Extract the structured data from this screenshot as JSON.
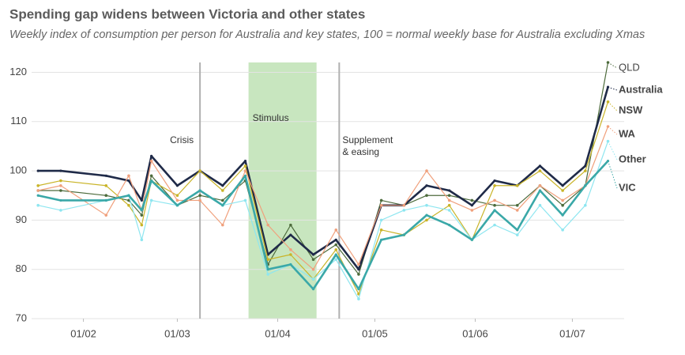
{
  "chart_data": {
    "type": "line",
    "title": "Spending gap widens between Victoria and other states",
    "subtitle": "Weekly index of consumption per person for Australia and key states, 100 = normal weekly base for Australia excluding Xmas",
    "x": [
      "18/01",
      "25/01",
      "08/02",
      "15/02",
      "19/02",
      "22/02",
      "01/03",
      "08/03",
      "15/03",
      "22/03",
      "29/03",
      "05/04",
      "12/04",
      "19/04",
      "26/04",
      "03/05",
      "10/05",
      "17/05",
      "24/05",
      "31/05",
      "07/06",
      "14/06",
      "21/06",
      "28/06",
      "05/07",
      "12/07"
    ],
    "xlim": [
      "16/01",
      "17/07"
    ],
    "xticks": [
      "01/02",
      "01/03",
      "01/04",
      "01/05",
      "01/06",
      "01/07"
    ],
    "ylim": [
      70,
      122
    ],
    "yticks": [
      70,
      80,
      90,
      100,
      110,
      120
    ],
    "grid": true,
    "series": [
      {
        "name": "QLD",
        "color": "#4d6b3c",
        "values": [
          96,
          96,
          95,
          94,
          91,
          99,
          93,
          95,
          94,
          98,
          81,
          89,
          82,
          85,
          79,
          94,
          93,
          95,
          95,
          94,
          93,
          93,
          97,
          93,
          97,
          122
        ]
      },
      {
        "name": "Australia",
        "color": "#1f2a48",
        "values": [
          100,
          100,
          99,
          98,
          94,
          103,
          97,
          100,
          97,
          102,
          83,
          87,
          83,
          86,
          80,
          93,
          93,
          97,
          96,
          93,
          98,
          97,
          101,
          97,
          101,
          117
        ]
      },
      {
        "name": "NSW",
        "color": "#c9b428",
        "values": [
          97,
          98,
          97,
          93,
          89,
          98,
          95,
          100,
          96,
          101,
          82,
          83,
          78,
          84,
          75,
          88,
          87,
          90,
          93,
          86,
          97,
          97,
          100,
          96,
          100,
          114
        ]
      },
      {
        "name": "WA",
        "color": "#f0a07c",
        "values": [
          96,
          97,
          91,
          99,
          92,
          102,
          94,
          94,
          89,
          100,
          89,
          84,
          80,
          88,
          81,
          93,
          93,
          100,
          94,
          92,
          94,
          92,
          97,
          94,
          97,
          109
        ]
      },
      {
        "name": "Other",
        "color": "#8ee6f0",
        "values": [
          93,
          92,
          94,
          95,
          86,
          94,
          93,
          96,
          93,
          94,
          79,
          81,
          78,
          82,
          74,
          90,
          92,
          93,
          92,
          86,
          89,
          87,
          93,
          88,
          93,
          106
        ]
      },
      {
        "name": "VIC",
        "color": "#3aa8a8",
        "values": [
          95,
          94,
          94,
          95,
          92,
          98,
          93,
          96,
          93,
          99,
          80,
          81,
          76,
          83,
          76,
          86,
          87,
          91,
          89,
          86,
          92,
          88,
          96,
          91,
          97,
          102
        ]
      }
    ],
    "annotations": [
      {
        "type": "vline",
        "x": "08/03",
        "label": [
          "Crisis"
        ]
      },
      {
        "type": "band",
        "x": [
          "23/03",
          "13/04"
        ],
        "label": [
          "Stimulus"
        ]
      },
      {
        "type": "vline",
        "x": "20/04",
        "label": [
          "Supplement",
          "& easing"
        ]
      }
    ]
  }
}
